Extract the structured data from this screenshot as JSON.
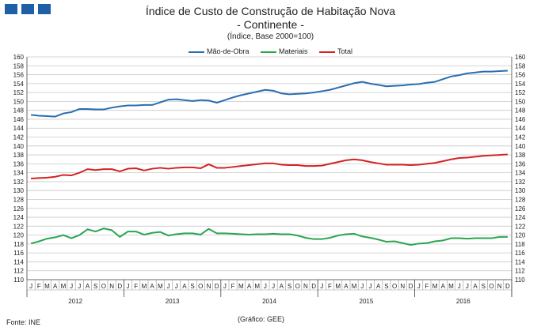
{
  "title": "Índice de Custo de Construção de Habitação Nova",
  "subtitle": "- Continente -",
  "note": "(Índice, Base 2000=100)",
  "source": "Fonte: INE",
  "credit": "(Gráfico: GEE)",
  "colors": {
    "brand": "#1f5fa5",
    "grid": "#c8c8c8"
  },
  "chart_data": {
    "type": "line",
    "title": "Índice de Custo de Construção de Habitação Nova",
    "ylabel": "(Índice, Base 2000=100)",
    "ylim": [
      110,
      160
    ],
    "ystep": 2,
    "grid": true,
    "legend_position": "top-center",
    "month_labels": [
      "J",
      "F",
      "M",
      "A",
      "M",
      "J",
      "J",
      "A",
      "S",
      "O",
      "N",
      "D"
    ],
    "years": [
      "2012",
      "2013",
      "2014",
      "2015",
      "2016"
    ],
    "series": [
      {
        "name": "Mão-de-Obra",
        "color": "#2a6db0",
        "values": [
          147.0,
          146.8,
          146.7,
          146.6,
          147.3,
          147.6,
          148.3,
          148.3,
          148.2,
          148.2,
          148.6,
          148.9,
          149.1,
          149.1,
          149.2,
          149.2,
          149.8,
          150.4,
          150.5,
          150.3,
          150.1,
          150.3,
          150.2,
          149.7,
          150.3,
          150.9,
          151.4,
          151.8,
          152.2,
          152.6,
          152.4,
          151.8,
          151.6,
          151.7,
          151.8,
          152.0,
          152.3,
          152.6,
          153.1,
          153.6,
          154.1,
          154.4,
          154.0,
          153.7,
          153.4,
          153.5,
          153.6,
          153.8,
          153.9,
          154.2,
          154.4,
          155.0,
          155.6,
          155.9,
          156.3,
          156.5,
          156.7,
          156.7,
          156.8,
          156.9
        ]
      },
      {
        "name": "Materiais",
        "color": "#2aa552",
        "values": [
          118.1,
          118.6,
          119.2,
          119.5,
          120.0,
          119.3,
          120.0,
          121.3,
          120.8,
          121.5,
          121.1,
          119.6,
          120.8,
          120.8,
          120.1,
          120.5,
          120.7,
          119.9,
          120.2,
          120.4,
          120.4,
          120.1,
          121.4,
          120.4,
          120.4,
          120.3,
          120.2,
          120.1,
          120.2,
          120.2,
          120.3,
          120.2,
          120.2,
          119.9,
          119.4,
          119.1,
          119.1,
          119.4,
          119.9,
          120.2,
          120.3,
          119.7,
          119.4,
          119.0,
          118.5,
          118.6,
          118.2,
          117.8,
          118.1,
          118.2,
          118.6,
          118.8,
          119.3,
          119.3,
          119.2,
          119.3,
          119.3,
          119.3,
          119.6,
          119.6
        ]
      },
      {
        "name": "Total",
        "color": "#d42323",
        "values": [
          132.7,
          132.8,
          132.9,
          133.1,
          133.5,
          133.4,
          134.0,
          134.8,
          134.6,
          134.8,
          134.8,
          134.3,
          134.9,
          135.0,
          134.5,
          134.9,
          135.1,
          134.9,
          135.1,
          135.2,
          135.2,
          135.0,
          135.9,
          135.1,
          135.1,
          135.3,
          135.5,
          135.7,
          135.9,
          136.1,
          136.1,
          135.8,
          135.7,
          135.7,
          135.5,
          135.5,
          135.6,
          136.0,
          136.4,
          136.8,
          137.0,
          136.8,
          136.4,
          136.1,
          135.8,
          135.8,
          135.8,
          135.7,
          135.8,
          136.0,
          136.2,
          136.6,
          137.0,
          137.3,
          137.4,
          137.6,
          137.8,
          137.9,
          138.0,
          138.1
        ]
      }
    ]
  }
}
